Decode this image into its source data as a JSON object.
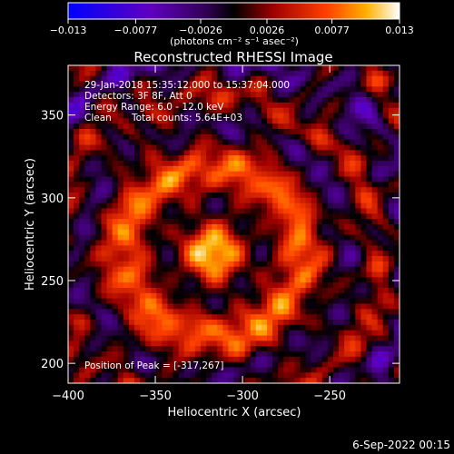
{
  "chart_data": {
    "type": "heatmap",
    "title": "Reconstructed RHESSI Image",
    "xlabel": "Heliocentric X (arcsec)",
    "ylabel": "Heliocentric Y (arcsec)",
    "xlim": [
      -400,
      -210
    ],
    "ylim": [
      188,
      380
    ],
    "x_ticks": [
      -400,
      -350,
      -300,
      -250
    ],
    "y_ticks": [
      200,
      250,
      300,
      350
    ],
    "x_tick_labels": [
      "−400",
      "−350",
      "−300",
      "−250"
    ],
    "y_tick_labels": [
      "200",
      "250",
      "300",
      "350"
    ],
    "colorbar": {
      "range": [
        -0.013,
        0.013
      ],
      "tick_values": [
        -0.013,
        -0.0077,
        -0.0026,
        0.0026,
        0.0077,
        0.013
      ],
      "tick_labels": [
        "−0.013",
        "−0.0077",
        "−0.0026",
        "0.0026",
        "0.0077",
        "0.013"
      ],
      "unit_label": "(photons cm⁻² s⁻¹ asec⁻²)"
    },
    "peak": [
      -317,
      267
    ],
    "annotations": {
      "time_range": "29-Jan-2018 15:35:12.000 to 15:37:04.000",
      "detectors": "Detectors: 3F 8F, Att 0",
      "energy": "Energy Range: 6.0 - 12.0 keV",
      "method": "Clean",
      "counts": "Total counts: 5.64E+03",
      "peak_text": "Position of Peak = [-317,267]"
    },
    "grid": false
  },
  "footer": {
    "date": "6-Sep-2022 00:15"
  }
}
